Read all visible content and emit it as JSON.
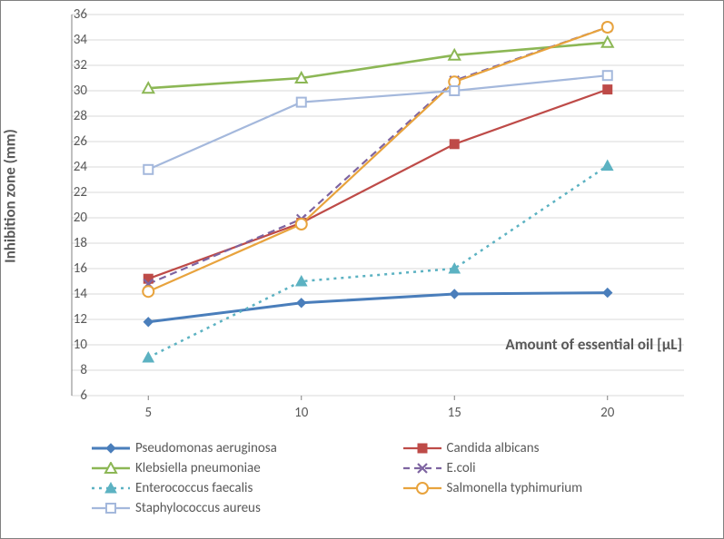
{
  "chart": {
    "type": "line",
    "x_values": [
      5,
      10,
      15,
      20
    ],
    "series": [
      {
        "id": "pseudomonas",
        "label": "Pseudomonas aeruginosa",
        "values": [
          11.8,
          13.3,
          14.0,
          14.1
        ],
        "color": "#4a7ebb",
        "marker": "diamond-filled",
        "dash": false,
        "width": 3.0
      },
      {
        "id": "candida",
        "label": "Candida albicans",
        "values": [
          15.2,
          19.6,
          25.8,
          30.1
        ],
        "color": "#be4b48",
        "marker": "square-filled",
        "dash": false,
        "width": 2.2
      },
      {
        "id": "klebsiella",
        "label": "Klebsiella pneumoniae",
        "values": [
          30.2,
          31.0,
          32.8,
          33.8
        ],
        "color": "#8cb755",
        "marker": "triangle-open",
        "dash": false,
        "width": 2.6
      },
      {
        "id": "ecoli",
        "label": "E.coli",
        "values": [
          14.8,
          19.9,
          30.8,
          35.0
        ],
        "color": "#7e64a1",
        "marker": "x",
        "dash": true,
        "width": 2.2
      },
      {
        "id": "enterococcus",
        "label": "Enterococcus faecalis",
        "values": [
          9.0,
          15.0,
          16.0,
          24.1
        ],
        "color": "#5cb2c2",
        "marker": "triangle-filled",
        "dash": true,
        "width": 2.5,
        "dotted": true
      },
      {
        "id": "salmonella",
        "label": "Salmonella typhimurium",
        "values": [
          14.2,
          19.5,
          30.7,
          35.0
        ],
        "color": "#e8a33d",
        "marker": "circle-open",
        "dash": false,
        "width": 2.2
      },
      {
        "id": "staphylococcus",
        "label": "Staphylococcus aureus",
        "values": [
          23.8,
          29.1,
          30.0,
          31.2
        ],
        "color": "#a4b8dc",
        "marker": "square-open",
        "dash": false,
        "width": 2.2
      }
    ],
    "y_label": "Inhibition zone (mm)",
    "x_label": "Amount of essential oil [µL]",
    "ylim": [
      6,
      36
    ],
    "ytick_step": 2,
    "grid_color": "#d9d9d9",
    "axis_color": "#808080",
    "background_color": "#ffffff",
    "font_color": "#595959"
  }
}
